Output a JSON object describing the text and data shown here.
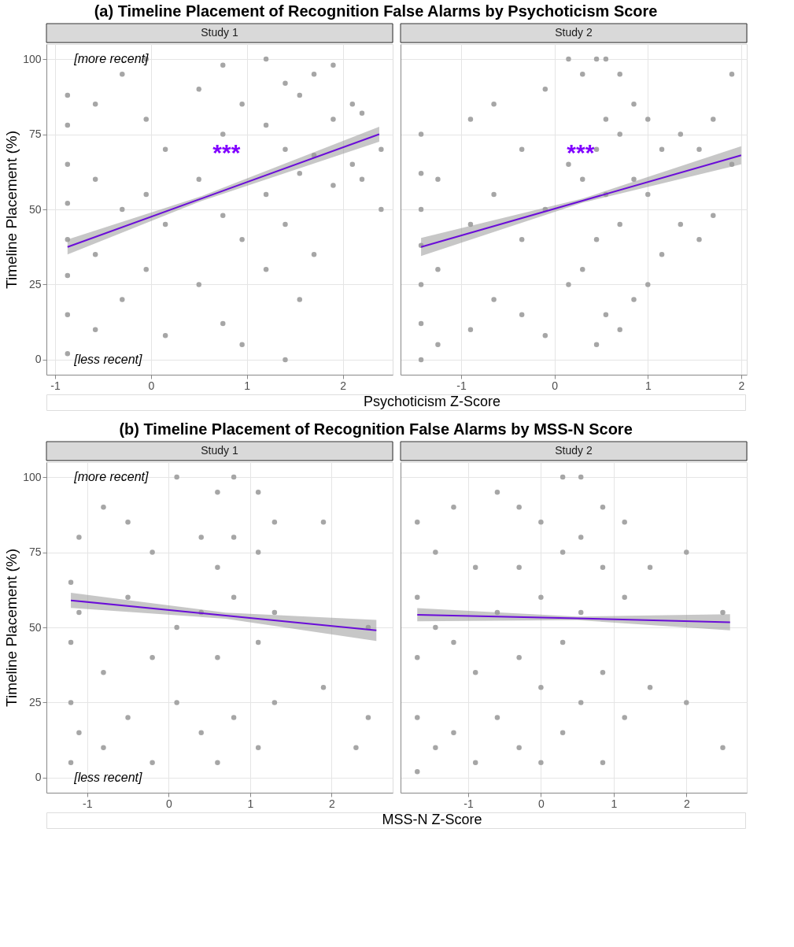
{
  "chart_data": [
    {
      "type": "scatter",
      "title": "(a) Timeline Placement of Recognition False Alarms by Psychoticism Score",
      "subtitle": "Study 1",
      "xlabel": "Psychoticism Z-Score",
      "ylabel": "Timeline Placement (%)",
      "xlim": [
        -1.09,
        2.52
      ],
      "ylim": [
        -5,
        105
      ],
      "xticks": [
        -1,
        0,
        1,
        2
      ],
      "yticks": [
        0,
        25,
        50,
        75,
        100
      ],
      "grid": true,
      "series": [
        {
          "color": "#a6a6a6",
          "marker": "circle",
          "x": [
            -0.87,
            -0.87,
            -0.87,
            -0.87,
            -0.87,
            -0.87,
            -0.87,
            -0.87,
            -0.58,
            -0.58,
            -0.58,
            -0.58,
            -0.3,
            -0.3,
            -0.3,
            -0.05,
            -0.05,
            -0.05,
            -0.05,
            0.15,
            0.15,
            0.15,
            0.5,
            0.5,
            0.5,
            0.75,
            0.75,
            0.75,
            0.75,
            0.95,
            0.95,
            0.95,
            1.2,
            1.2,
            1.2,
            1.2,
            1.4,
            1.4,
            1.4,
            1.4,
            1.55,
            1.55,
            1.55,
            1.7,
            1.7,
            1.7,
            1.9,
            1.9,
            1.9,
            2.1,
            2.1,
            2.2,
            2.2,
            2.4,
            2.4
          ],
          "values": [
            2,
            15,
            28,
            40,
            52,
            65,
            78,
            88,
            10,
            35,
            60,
            85,
            20,
            50,
            95,
            30,
            55,
            80,
            100,
            8,
            45,
            70,
            25,
            60,
            90,
            12,
            48,
            75,
            98,
            5,
            40,
            85,
            30,
            55,
            78,
            100,
            0,
            45,
            70,
            92,
            20,
            62,
            88,
            35,
            68,
            95,
            58,
            80,
            98,
            65,
            85,
            60,
            82,
            50,
            70
          ]
        },
        {
          "type": "line",
          "color": "#6a0dd8",
          "x": [
            -0.87,
            0.5,
            2.38
          ],
          "values": [
            37.5,
            53.3,
            75
          ],
          "lower": [
            35,
            52.5,
            72.5
          ],
          "upper": [
            40,
            54.1,
            77.5
          ]
        }
      ],
      "annotations": [
        "***",
        "[more recent]",
        "[less recent]"
      ]
    },
    {
      "type": "scatter",
      "subtitle": "Study 2",
      "xlim": [
        -1.65,
        2.06
      ],
      "ylim": [
        -5,
        105
      ],
      "xticks": [
        -1,
        0,
        1,
        2
      ],
      "yticks": [
        0,
        25,
        50,
        75,
        100
      ],
      "grid": true,
      "tick_labels": "x",
      "series": [
        {
          "color": "#a6a6a6",
          "marker": "circle",
          "x": [
            -1.43,
            -1.43,
            -1.43,
            -1.43,
            -1.43,
            -1.43,
            -1.43,
            -1.25,
            -1.25,
            -1.25,
            -0.9,
            -0.9,
            -0.9,
            -0.65,
            -0.65,
            -0.65,
            -0.35,
            -0.35,
            -0.35,
            -0.1,
            -0.1,
            -0.1,
            0.15,
            0.15,
            0.15,
            0.3,
            0.3,
            0.3,
            0.45,
            0.45,
            0.45,
            0.45,
            0.55,
            0.55,
            0.55,
            0.55,
            0.7,
            0.7,
            0.7,
            0.7,
            0.85,
            0.85,
            0.85,
            1.0,
            1.0,
            1.0,
            1.15,
            1.15,
            1.35,
            1.35,
            1.55,
            1.55,
            1.7,
            1.7,
            1.9,
            1.9
          ],
          "values": [
            0,
            12,
            25,
            38,
            50,
            62,
            75,
            5,
            30,
            60,
            10,
            45,
            80,
            20,
            55,
            85,
            15,
            40,
            70,
            8,
            50,
            90,
            25,
            65,
            100,
            30,
            60,
            95,
            5,
            40,
            70,
            100,
            15,
            55,
            80,
            100,
            10,
            45,
            75,
            95,
            20,
            60,
            85,
            25,
            55,
            80,
            35,
            70,
            45,
            75,
            40,
            70,
            48,
            80,
            65,
            95
          ]
        },
        {
          "type": "line",
          "color": "#6a0dd8",
          "x": [
            -1.43,
            0.3,
            2.0
          ],
          "values": [
            37.5,
            52.9,
            68
          ],
          "lower": [
            34.5,
            52.2,
            65
          ],
          "upper": [
            40.5,
            53.6,
            71
          ]
        }
      ],
      "annotations": [
        "***"
      ]
    },
    {
      "type": "scatter",
      "title": "(b) Timeline Placement of Recognition False Alarms by MSS-N Score",
      "subtitle": "Study 1",
      "xlabel": "MSS-N Z-Score",
      "ylabel": "Timeline Placement (%)",
      "xlim": [
        -1.5,
        2.75
      ],
      "ylim": [
        -5,
        105
      ],
      "xticks": [
        -1,
        0,
        1,
        2
      ],
      "yticks": [
        0,
        25,
        50,
        75,
        100
      ],
      "grid": true,
      "series": [
        {
          "color": "#a6a6a6",
          "marker": "circle",
          "x": [
            -1.2,
            -1.2,
            -1.2,
            -1.2,
            -1.1,
            -1.1,
            -1.1,
            -0.8,
            -0.8,
            -0.8,
            -0.5,
            -0.5,
            -0.5,
            -0.2,
            -0.2,
            -0.2,
            0.1,
            0.1,
            0.1,
            0.4,
            0.4,
            0.4,
            0.6,
            0.6,
            0.6,
            0.6,
            0.8,
            0.8,
            0.8,
            0.8,
            1.1,
            1.1,
            1.1,
            1.1,
            1.3,
            1.3,
            1.3,
            1.9,
            1.9,
            2.3,
            2.45,
            2.45
          ],
          "values": [
            5,
            25,
            45,
            65,
            15,
            55,
            80,
            10,
            35,
            90,
            20,
            60,
            85,
            5,
            40,
            75,
            25,
            50,
            100,
            15,
            55,
            80,
            5,
            40,
            70,
            95,
            20,
            60,
            80,
            100,
            10,
            45,
            75,
            95,
            25,
            55,
            85,
            30,
            85,
            10,
            20,
            50
          ]
        },
        {
          "type": "line",
          "color": "#6a0dd8",
          "x": [
            -1.2,
            0.7,
            2.55
          ],
          "values": [
            59,
            53.9,
            49
          ],
          "lower": [
            56.5,
            52.9,
            45.5
          ],
          "upper": [
            61.5,
            54.9,
            52.5
          ]
        }
      ],
      "annotations": [
        "[more recent]",
        "[less recent]"
      ]
    },
    {
      "type": "scatter",
      "subtitle": "Study 2",
      "xlim": [
        -1.93,
        2.83
      ],
      "ylim": [
        -5,
        105
      ],
      "xticks": [
        -1,
        0,
        1,
        2
      ],
      "yticks": [
        0,
        25,
        50,
        75,
        100
      ],
      "grid": true,
      "tick_labels": "x",
      "series": [
        {
          "color": "#a6a6a6",
          "marker": "circle",
          "x": [
            -1.7,
            -1.7,
            -1.7,
            -1.7,
            -1.7,
            -1.45,
            -1.45,
            -1.45,
            -1.2,
            -1.2,
            -1.2,
            -0.9,
            -0.9,
            -0.9,
            -0.6,
            -0.6,
            -0.6,
            -0.3,
            -0.3,
            -0.3,
            -0.3,
            0.0,
            0.0,
            0.0,
            0.0,
            0.3,
            0.3,
            0.3,
            0.3,
            0.55,
            0.55,
            0.55,
            0.55,
            0.85,
            0.85,
            0.85,
            0.85,
            1.15,
            1.15,
            1.15,
            1.5,
            1.5,
            2.0,
            2.0,
            2.5,
            2.5
          ],
          "values": [
            2,
            20,
            40,
            60,
            85,
            10,
            50,
            75,
            15,
            45,
            90,
            5,
            35,
            70,
            20,
            55,
            95,
            10,
            40,
            70,
            90,
            5,
            30,
            60,
            85,
            15,
            45,
            75,
            100,
            25,
            55,
            80,
            100,
            5,
            35,
            70,
            90,
            20,
            60,
            85,
            30,
            70,
            25,
            75,
            10,
            55
          ]
        },
        {
          "type": "line",
          "color": "#6a0dd8",
          "x": [
            -1.7,
            0.5,
            2.6
          ],
          "values": [
            54.2,
            53,
            51.7
          ],
          "lower": [
            52,
            52.4,
            49
          ],
          "upper": [
            56.4,
            53.6,
            54.4
          ]
        }
      ]
    }
  ]
}
